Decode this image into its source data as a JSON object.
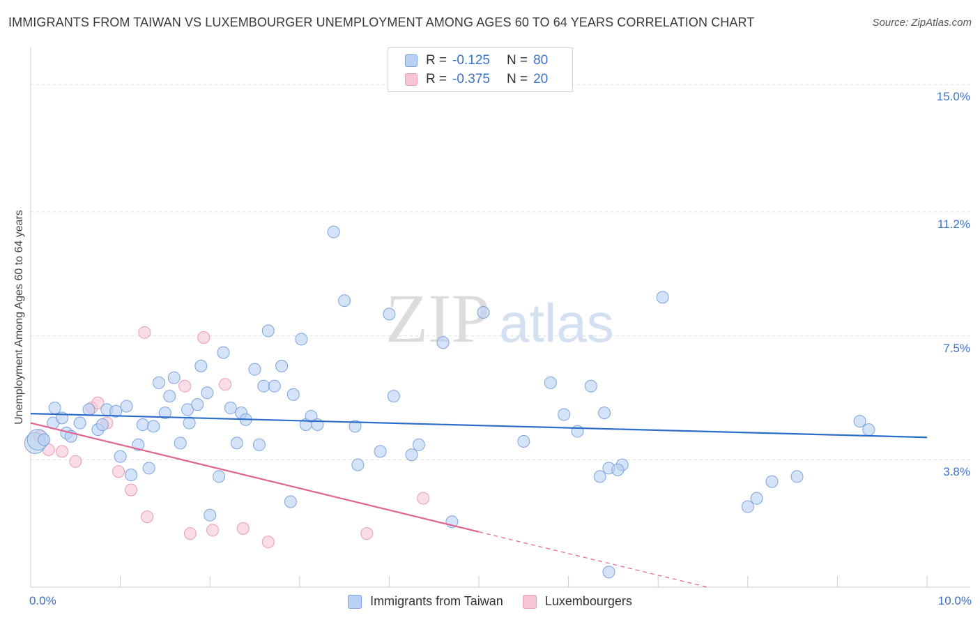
{
  "header": {
    "title": "IMMIGRANTS FROM TAIWAN VS LUXEMBOURGER UNEMPLOYMENT AMONG AGES 60 TO 64 YEARS CORRELATION CHART",
    "source": "Source: ZipAtlas.com"
  },
  "watermark": {
    "zip": "ZIP",
    "atlas": "atlas"
  },
  "legend": {
    "r_label": "R =",
    "n_label": "N =",
    "series": [
      {
        "r": "-0.125",
        "n": "80"
      },
      {
        "r": "-0.375",
        "n": "20"
      }
    ]
  },
  "colors": {
    "taiwan_fill": "#b9d1f3",
    "taiwan_stroke": "#7aa3dc",
    "taiwan_line": "#2a6cc9",
    "lux_fill": "#f7c6d6",
    "lux_stroke": "#e99bb5",
    "lux_line": "#e0648e",
    "tick_text": "#3b72c4"
  },
  "chart_data": {
    "type": "scatter",
    "title": "IMMIGRANTS FROM TAIWAN VS LUXEMBOURGER UNEMPLOYMENT AMONG AGES 60 TO 64 YEARS CORRELATION CHART",
    "ylabel": "Unemployment Among Ages 60 to 64 years",
    "xlabel": "",
    "xlim": [
      0,
      10
    ],
    "ylim": [
      0,
      15.9
    ],
    "y_ticks": [
      {
        "value": 3.8,
        "label": "3.8%"
      },
      {
        "value": 7.5,
        "label": "7.5%"
      },
      {
        "value": 11.2,
        "label": "11.2%"
      },
      {
        "value": 15.0,
        "label": "15.0%"
      }
    ],
    "x_ticks": [
      {
        "value": 0,
        "label": "0.0%"
      },
      {
        "value": 10,
        "label": "10.0%"
      }
    ],
    "grid": true,
    "legend_position": "top-center",
    "series": [
      {
        "name": "Immigrants from Taiwan",
        "r": -0.125,
        "n": 80,
        "trend": {
          "x": [
            0,
            10
          ],
          "y": [
            5.18,
            4.47
          ]
        },
        "points": [
          [
            0.05,
            4.3,
            "l"
          ],
          [
            0.08,
            4.4,
            "l"
          ],
          [
            0.15,
            4.4
          ],
          [
            0.25,
            4.9
          ],
          [
            0.27,
            5.35
          ],
          [
            0.35,
            5.05
          ],
          [
            0.4,
            4.6
          ],
          [
            0.45,
            4.5
          ],
          [
            0.55,
            4.9
          ],
          [
            0.65,
            5.3
          ],
          [
            0.75,
            4.7
          ],
          [
            0.8,
            4.85
          ],
          [
            0.85,
            5.3
          ],
          [
            0.95,
            5.25
          ],
          [
            1.0,
            3.9
          ],
          [
            1.07,
            5.4
          ],
          [
            1.12,
            3.35
          ],
          [
            1.2,
            4.25
          ],
          [
            1.25,
            4.85
          ],
          [
            1.32,
            3.55
          ],
          [
            1.37,
            4.8
          ],
          [
            1.43,
            6.1
          ],
          [
            1.5,
            5.2
          ],
          [
            1.55,
            5.7
          ],
          [
            1.6,
            6.25
          ],
          [
            1.67,
            4.3
          ],
          [
            1.75,
            5.3
          ],
          [
            1.77,
            4.9
          ],
          [
            1.86,
            5.45
          ],
          [
            1.9,
            6.6
          ],
          [
            1.97,
            5.8
          ],
          [
            2.0,
            2.15
          ],
          [
            2.1,
            3.3
          ],
          [
            2.15,
            7.0
          ],
          [
            2.23,
            5.35
          ],
          [
            2.3,
            4.3
          ],
          [
            2.35,
            5.2
          ],
          [
            2.4,
            5.0
          ],
          [
            2.5,
            6.5
          ],
          [
            2.55,
            4.25
          ],
          [
            2.6,
            6.0
          ],
          [
            2.65,
            7.65
          ],
          [
            2.72,
            6.0
          ],
          [
            2.8,
            6.6
          ],
          [
            2.9,
            2.55
          ],
          [
            2.93,
            5.75
          ],
          [
            3.02,
            7.4
          ],
          [
            3.07,
            4.85
          ],
          [
            3.13,
            5.1
          ],
          [
            3.38,
            10.6
          ],
          [
            3.5,
            8.55
          ],
          [
            3.62,
            4.8
          ],
          [
            3.65,
            3.65
          ],
          [
            3.9,
            4.05
          ],
          [
            4.0,
            8.15
          ],
          [
            4.05,
            5.7
          ],
          [
            4.25,
            3.95
          ],
          [
            4.33,
            4.25
          ],
          [
            4.6,
            7.3
          ],
          [
            4.7,
            1.95
          ],
          [
            5.05,
            8.2
          ],
          [
            5.5,
            4.35
          ],
          [
            5.8,
            6.1
          ],
          [
            5.95,
            5.15
          ],
          [
            6.1,
            4.65
          ],
          [
            6.25,
            6.0
          ],
          [
            6.35,
            3.3
          ],
          [
            6.4,
            5.2
          ],
          [
            6.45,
            3.55
          ],
          [
            6.6,
            3.65
          ],
          [
            7.05,
            8.65
          ],
          [
            8.0,
            2.4
          ],
          [
            8.1,
            2.65
          ],
          [
            8.27,
            3.15
          ],
          [
            8.55,
            3.3
          ],
          [
            9.25,
            4.95
          ],
          [
            9.35,
            4.7
          ],
          [
            6.55,
            3.5
          ],
          [
            6.45,
            0.45
          ],
          [
            3.2,
            4.85
          ]
        ]
      },
      {
        "name": "Luxembourgers",
        "r": -0.375,
        "n": 20,
        "trend": {
          "x": [
            0,
            5.0
          ],
          "y": [
            4.9,
            1.65
          ]
        },
        "trend_dashed": {
          "x": [
            5.0,
            7.55
          ],
          "y": [
            1.65,
            0
          ]
        },
        "points": [
          [
            0.1,
            4.5
          ],
          [
            0.2,
            4.1
          ],
          [
            0.35,
            4.05
          ],
          [
            0.5,
            3.75
          ],
          [
            0.68,
            5.35
          ],
          [
            0.75,
            5.5
          ],
          [
            0.85,
            4.9
          ],
          [
            0.98,
            3.45
          ],
          [
            1.12,
            2.9
          ],
          [
            1.3,
            2.1
          ],
          [
            1.27,
            7.6
          ],
          [
            1.72,
            6.0
          ],
          [
            1.78,
            1.6
          ],
          [
            1.93,
            7.45
          ],
          [
            2.03,
            1.7
          ],
          [
            2.17,
            6.05
          ],
          [
            2.37,
            1.75
          ],
          [
            2.65,
            1.35
          ],
          [
            3.75,
            1.6
          ],
          [
            4.38,
            2.65
          ]
        ]
      }
    ]
  }
}
